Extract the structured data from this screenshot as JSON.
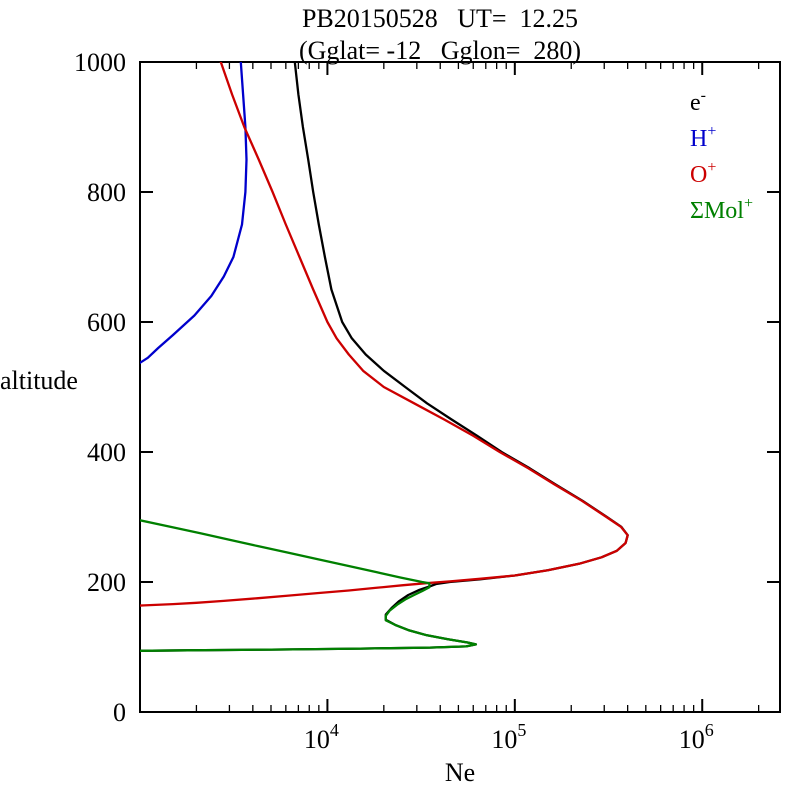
{
  "title": "PB20150528   UT=  12.25",
  "subtitle": "(Gglat= -12   Gglon=  280)",
  "chart_data": {
    "type": "line",
    "title": "PB20150528   UT=  12.25",
    "subtitle": "(Gglat= -12   Gglon=  280)",
    "xlabel": "Ne",
    "ylabel": "altitude",
    "xscale": "log",
    "xlim": [
      1000,
      2600000
    ],
    "ylim": [
      0,
      1000
    ],
    "yticks": [
      0,
      200,
      400,
      600,
      800,
      1000
    ],
    "xticks": [
      {
        "value": 10000,
        "base": "10",
        "exp": "4"
      },
      {
        "value": 100000,
        "base": "10",
        "exp": "5"
      },
      {
        "value": 1000000,
        "base": "10",
        "exp": "6"
      }
    ],
    "grid": false,
    "legend_position": "upper-right-inside",
    "legend": [
      {
        "id": "electron",
        "base": "e",
        "sup": "-",
        "color": "#000000"
      },
      {
        "id": "h-plus",
        "base": "H",
        "sup": "+",
        "color": "#0000cc"
      },
      {
        "id": "o-plus",
        "base": "O",
        "sup": "+",
        "color": "#cc0000"
      },
      {
        "id": "mol-plus",
        "base": "ΣMol",
        "sup": "+",
        "color": "#008000"
      }
    ],
    "series": [
      {
        "id": "electron",
        "name": "e-",
        "color": "#000000",
        "points": [
          [
            6700,
            1000
          ],
          [
            7000,
            950
          ],
          [
            7400,
            900
          ],
          [
            7900,
            850
          ],
          [
            8400,
            800
          ],
          [
            9000,
            750
          ],
          [
            9700,
            700
          ],
          [
            10500,
            650
          ],
          [
            12000,
            600
          ],
          [
            13500,
            575
          ],
          [
            16000,
            550
          ],
          [
            20000,
            525
          ],
          [
            26000,
            500
          ],
          [
            34000,
            475
          ],
          [
            46000,
            450
          ],
          [
            63000,
            425
          ],
          [
            85000,
            400
          ],
          [
            120000,
            375
          ],
          [
            165000,
            350
          ],
          [
            230000,
            325
          ],
          [
            310000,
            300
          ],
          [
            370000,
            285
          ],
          [
            400000,
            272
          ],
          [
            390000,
            260
          ],
          [
            350000,
            248
          ],
          [
            290000,
            238
          ],
          [
            220000,
            228
          ],
          [
            150000,
            218
          ],
          [
            100000,
            210
          ],
          [
            65000,
            204
          ],
          [
            45000,
            200
          ],
          [
            38000,
            197
          ],
          [
            35000,
            193
          ],
          [
            31000,
            188
          ],
          [
            27000,
            180
          ],
          [
            24000,
            170
          ],
          [
            22000,
            160
          ],
          [
            20500,
            150
          ],
          [
            20500,
            142
          ],
          [
            23000,
            134
          ],
          [
            27000,
            126
          ],
          [
            34000,
            118
          ],
          [
            44000,
            112
          ],
          [
            56000,
            107
          ],
          [
            62000,
            104
          ],
          [
            55000,
            101
          ],
          [
            35000,
            99
          ],
          [
            15000,
            97.5
          ],
          [
            5000,
            96
          ],
          [
            1800,
            95
          ],
          [
            900,
            94
          ]
        ]
      },
      {
        "id": "h-plus",
        "name": "H+",
        "color": "#0000cc",
        "points": [
          [
            3450,
            1000
          ],
          [
            3550,
            950
          ],
          [
            3650,
            900
          ],
          [
            3700,
            850
          ],
          [
            3650,
            800
          ],
          [
            3500,
            750
          ],
          [
            3150,
            700
          ],
          [
            2800,
            670
          ],
          [
            2400,
            640
          ],
          [
            1950,
            610
          ],
          [
            1500,
            580
          ],
          [
            1250,
            560
          ],
          [
            1100,
            545
          ],
          [
            950,
            533
          ]
        ]
      },
      {
        "id": "o-plus",
        "name": "O+",
        "color": "#cc0000",
        "points": [
          [
            2700,
            1000
          ],
          [
            3100,
            950
          ],
          [
            3600,
            900
          ],
          [
            4300,
            850
          ],
          [
            5100,
            800
          ],
          [
            6000,
            750
          ],
          [
            7100,
            700
          ],
          [
            8400,
            650
          ],
          [
            10000,
            600
          ],
          [
            11200,
            575
          ],
          [
            13000,
            550
          ],
          [
            15500,
            525
          ],
          [
            20000,
            500
          ],
          [
            29000,
            475
          ],
          [
            42000,
            450
          ],
          [
            60000,
            425
          ],
          [
            83000,
            400
          ],
          [
            118000,
            375
          ],
          [
            163000,
            350
          ],
          [
            228000,
            325
          ],
          [
            308000,
            300
          ],
          [
            368000,
            285
          ],
          [
            400000,
            272
          ],
          [
            390000,
            260
          ],
          [
            350000,
            248
          ],
          [
            290000,
            238
          ],
          [
            220000,
            228
          ],
          [
            150000,
            218
          ],
          [
            100000,
            210
          ],
          [
            65000,
            205
          ],
          [
            45000,
            201
          ],
          [
            33000,
            198
          ],
          [
            25000,
            195
          ],
          [
            18000,
            191
          ],
          [
            13000,
            187
          ],
          [
            9000,
            183
          ],
          [
            6200,
            179
          ],
          [
            4200,
            175
          ],
          [
            2800,
            171
          ],
          [
            2000,
            168
          ],
          [
            1500,
            166
          ],
          [
            1050,
            164
          ],
          [
            850,
            163
          ]
        ]
      },
      {
        "id": "mol-plus",
        "name": "SigmaMol+",
        "color": "#008000",
        "points": [
          [
            1000,
            295
          ],
          [
            1450,
            285
          ],
          [
            2100,
            275
          ],
          [
            3000,
            265
          ],
          [
            4300,
            255
          ],
          [
            6200,
            245
          ],
          [
            8900,
            235
          ],
          [
            12800,
            225
          ],
          [
            18400,
            215
          ],
          [
            24500,
            207
          ],
          [
            32000,
            200
          ],
          [
            35000,
            198
          ],
          [
            35000,
            192
          ],
          [
            32000,
            186
          ],
          [
            29000,
            180
          ],
          [
            26000,
            173
          ],
          [
            23500,
            165
          ],
          [
            21500,
            156
          ],
          [
            20500,
            148
          ],
          [
            20500,
            141
          ],
          [
            23000,
            134
          ],
          [
            27000,
            126
          ],
          [
            34000,
            118
          ],
          [
            44000,
            112
          ],
          [
            56000,
            107
          ],
          [
            62000,
            104
          ],
          [
            55000,
            101
          ],
          [
            35000,
            99
          ],
          [
            15000,
            97.5
          ],
          [
            5000,
            96
          ],
          [
            1800,
            95
          ],
          [
            900,
            94
          ]
        ]
      }
    ]
  }
}
